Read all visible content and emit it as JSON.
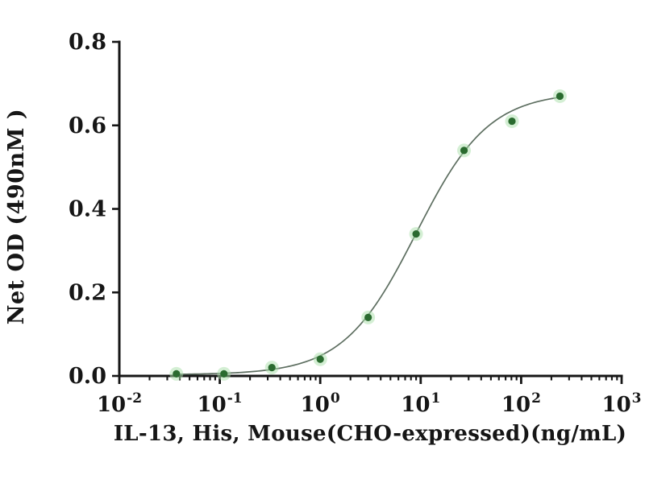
{
  "chart_data": {
    "type": "scatter",
    "xlabel": "IL-13, His, Mouse(CHO-expressed)(ng/mL)",
    "ylabel": "Net OD (490nM )",
    "x_scale": "log10",
    "x_log_range": [
      -2,
      3
    ],
    "x_tick_base": "10",
    "x_tick_exponents": [
      -2,
      -1,
      0,
      1,
      2,
      3
    ],
    "ylim": [
      0,
      0.8
    ],
    "y_ticks": [
      0,
      0.2,
      0.4,
      0.6,
      0.8
    ],
    "y_tick_labels": [
      "0.0",
      "0.2",
      "0.4",
      "0.6",
      "0.8"
    ],
    "grid": false,
    "points": {
      "x": [
        0.037,
        0.11,
        0.33,
        1,
        3,
        9,
        27,
        81,
        243
      ],
      "y": [
        0.005,
        0.005,
        0.02,
        0.04,
        0.14,
        0.34,
        0.54,
        0.61,
        0.67
      ]
    },
    "fit_curve": {
      "model": "4PL",
      "bottom": 0.003,
      "top": 0.68,
      "ec50": 9,
      "hill": 1.2,
      "x_range": [
        0.037,
        243
      ]
    },
    "colors": {
      "point": "#2a6b2f",
      "point_halo": "#a9dfaa",
      "curve": "#5d6e60",
      "axis": "#161616",
      "text": "#161616",
      "background": "#ffffff"
    }
  }
}
